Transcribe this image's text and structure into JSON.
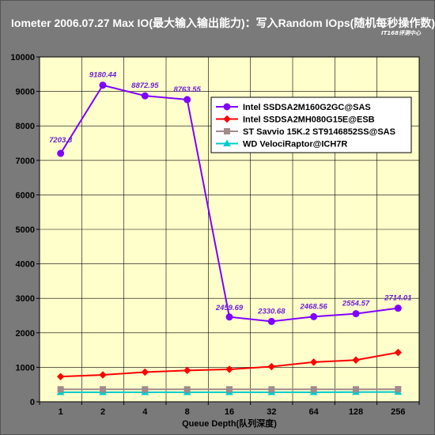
{
  "chart_data": {
    "type": "line",
    "title": "Iometer 2006.07.27 Max IO(最大输入输出能力)：写入Random IOps(随机每秒操作数)",
    "watermark": "IT168评测中心",
    "xlabel": "Queue Depth(队列深度)",
    "ylabel": "",
    "categories": [
      "1",
      "2",
      "4",
      "8",
      "16",
      "32",
      "64",
      "128",
      "256"
    ],
    "ylim": [
      0,
      10000
    ],
    "yticks": [
      0,
      1000,
      2000,
      3000,
      4000,
      5000,
      6000,
      7000,
      8000,
      9000,
      10000
    ],
    "grid": true,
    "legend_position": "right",
    "plot_background": "#ffffcc",
    "series": [
      {
        "name": "Intel SSDSA2M160G2GC@SAS",
        "color": "#8000ff",
        "marker": "circle",
        "values": [
          7203.8,
          9180.44,
          8872.95,
          8763.55,
          2459.69,
          2330.68,
          2468.56,
          2554.57,
          2714.01
        ],
        "labels": [
          "7203.8",
          "9180.44",
          "8872.95",
          "8763.55",
          "2459.69",
          "2330.68",
          "2468.56",
          "2554.57",
          "2714.01"
        ]
      },
      {
        "name": "Intel SSDSA2MH080G15E@ESB",
        "color": "#ff0000",
        "marker": "diamond",
        "values": [
          730,
          780,
          860,
          910,
          940,
          1020,
          1150,
          1210,
          1430
        ]
      },
      {
        "name": "ST Savvio 15K.2 ST9146852SS@SAS",
        "color": "#a08b8b",
        "marker": "square",
        "values": [
          360,
          360,
          360,
          360,
          360,
          360,
          360,
          360,
          365
        ]
      },
      {
        "name": "WD VelociRaptor@ICH7R",
        "color": "#00cccc",
        "marker": "triangle",
        "values": [
          275,
          275,
          275,
          275,
          275,
          275,
          275,
          280,
          285
        ]
      }
    ]
  }
}
